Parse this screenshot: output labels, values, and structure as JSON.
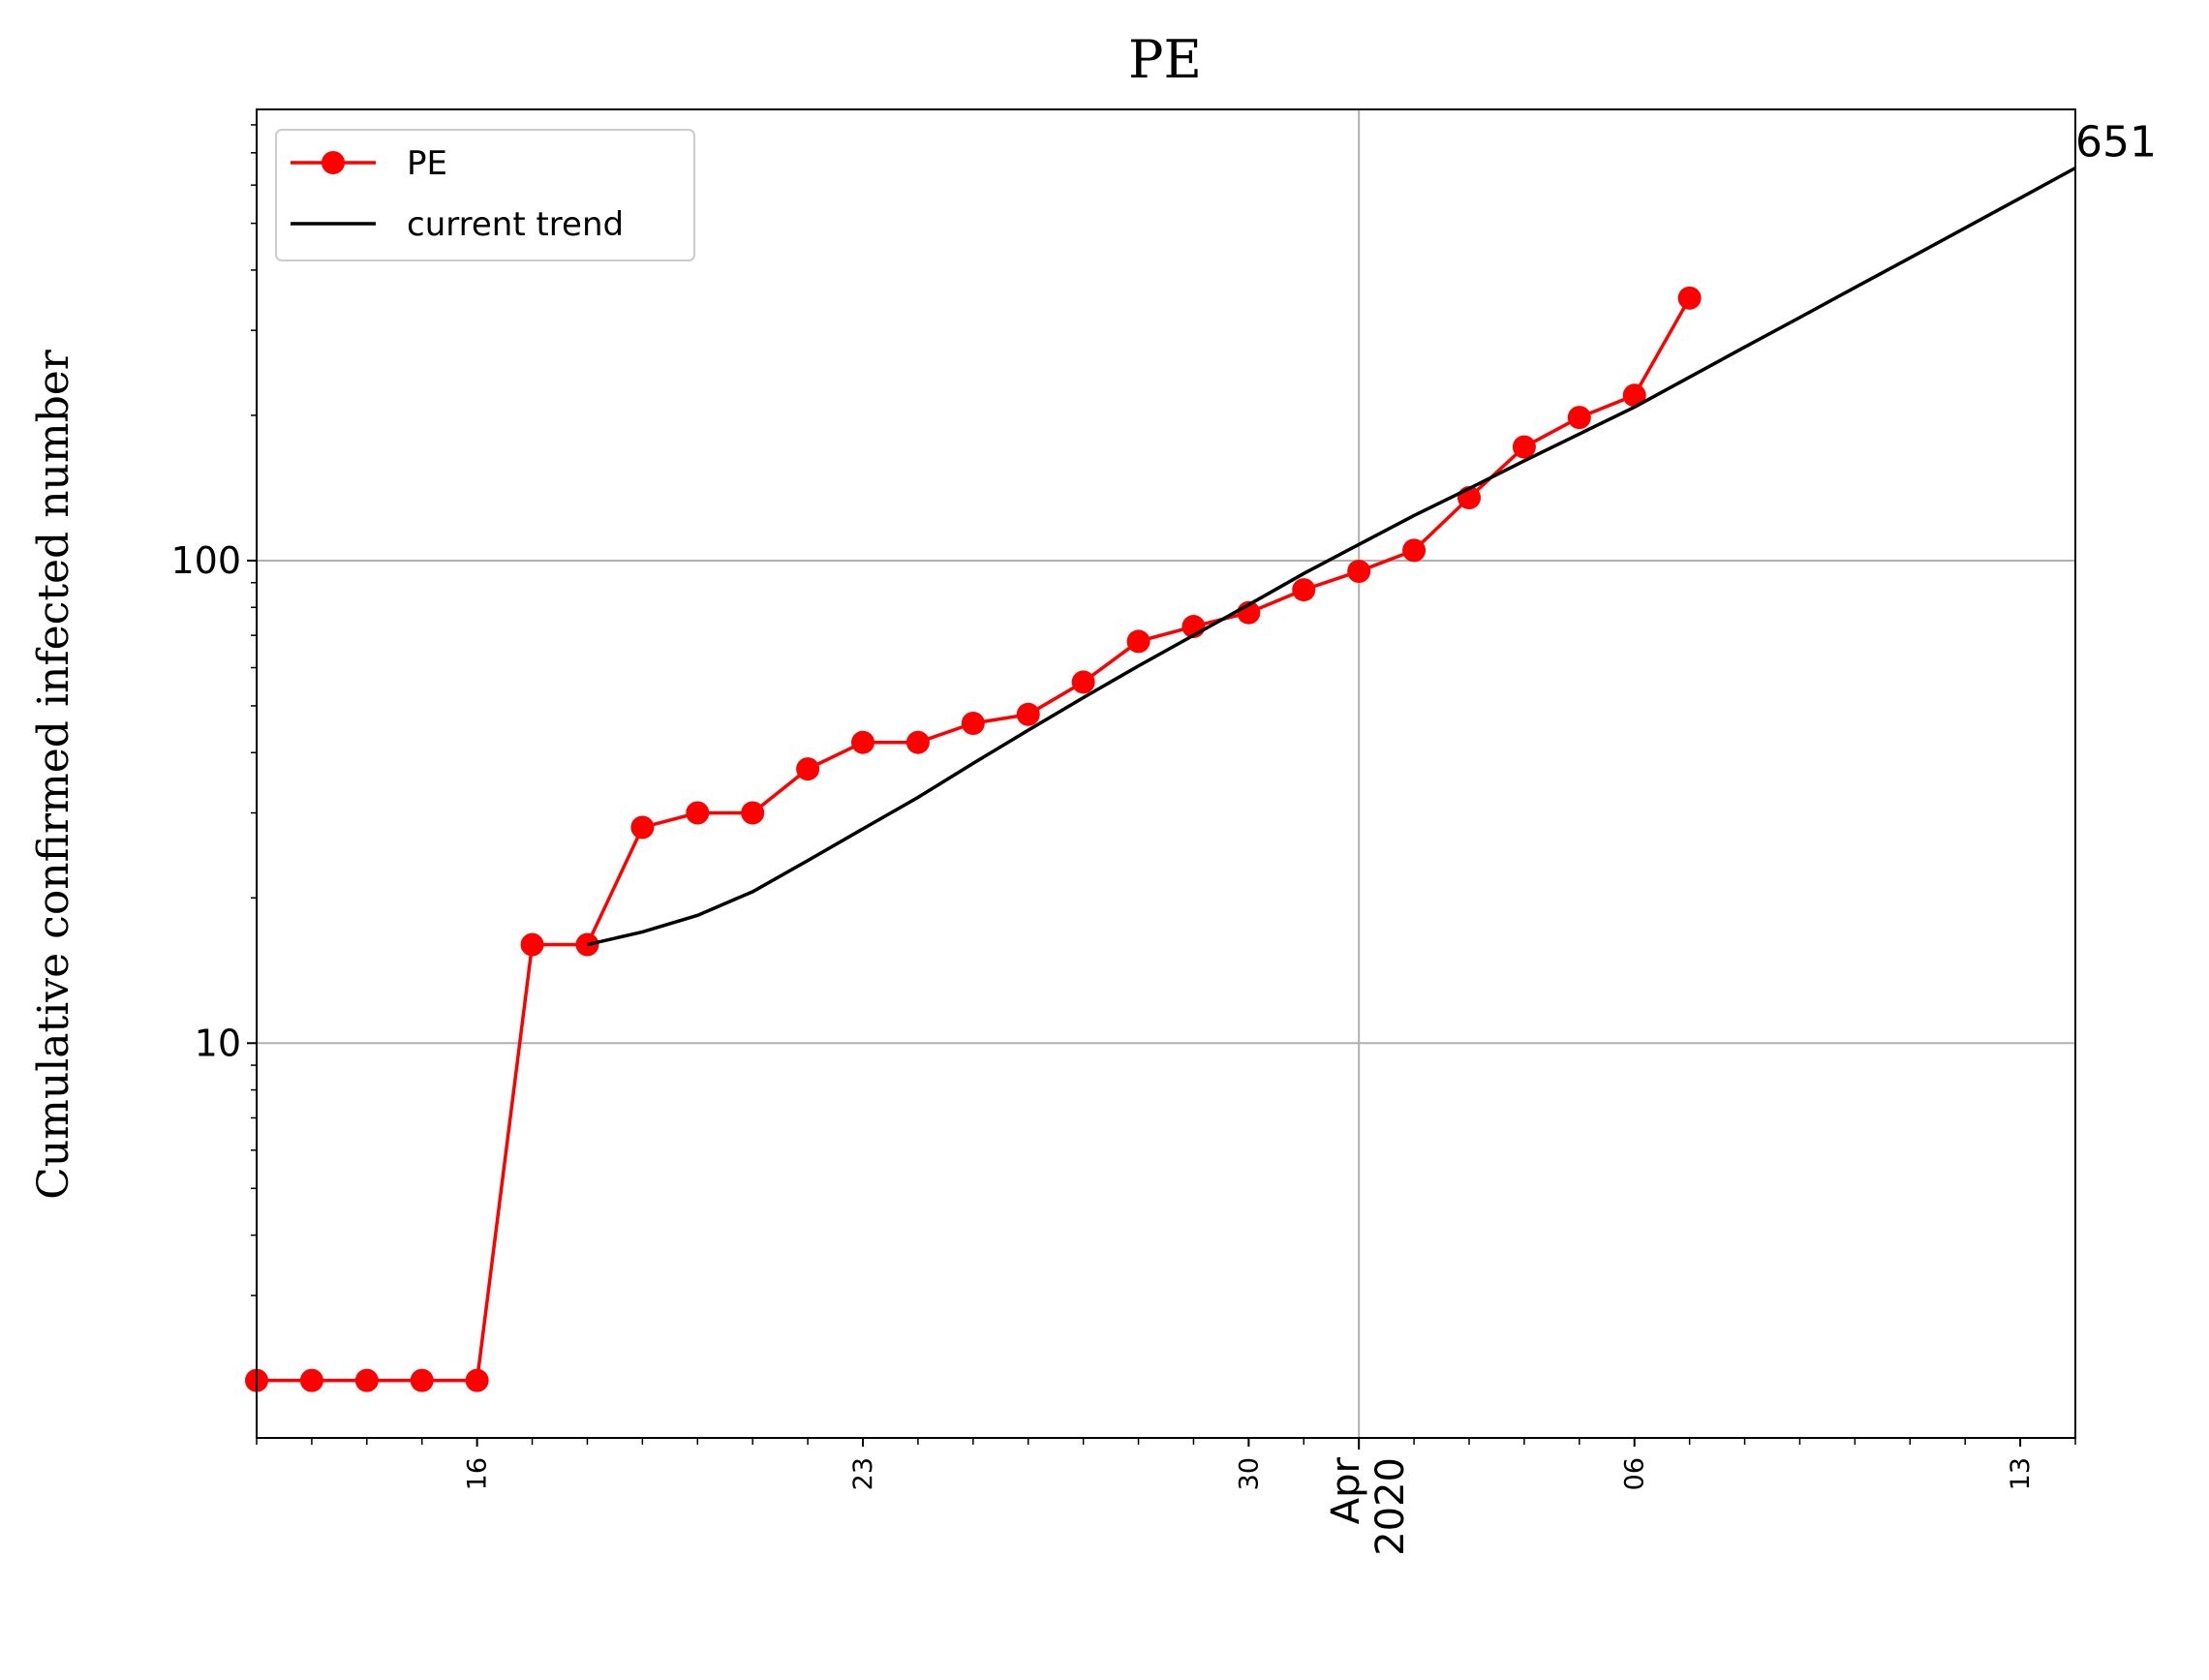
{
  "chart_data": {
    "type": "line",
    "title": "PE",
    "y_label": "Cumulative confirmed infected number",
    "log_y": true,
    "grid": true,
    "legend": "upper left",
    "xlim": [
      "2020-03-12",
      "2020-04-14"
    ],
    "ylim": [
      1.52,
      861
    ],
    "yticks": [
      10,
      100
    ],
    "xticks": [
      {
        "value": "2020-03-16",
        "label": "16"
      },
      {
        "value": "2020-03-23",
        "label": "23"
      },
      {
        "value": "2020-03-30",
        "label": "30"
      },
      {
        "value": "2020-04-01",
        "label": "Apr 2020"
      },
      {
        "value": "2020-04-06",
        "label": "06"
      },
      {
        "value": "2020-04-13",
        "label": "13"
      }
    ],
    "series": [
      {
        "name": "PE",
        "color": "#ff0000",
        "marker": true,
        "x": [
          "2020-03-12",
          "2020-03-13",
          "2020-03-14",
          "2020-03-15",
          "2020-03-16",
          "2020-03-17",
          "2020-03-18",
          "2020-03-19",
          "2020-03-20",
          "2020-03-21",
          "2020-03-22",
          "2020-03-23",
          "2020-03-24",
          "2020-03-25",
          "2020-03-26",
          "2020-03-27",
          "2020-03-28",
          "2020-03-29",
          "2020-03-30",
          "2020-03-31",
          "2020-04-01",
          "2020-04-02",
          "2020-04-03",
          "2020-04-04",
          "2020-04-05",
          "2020-04-06",
          "2020-04-07"
        ],
        "values": [
          2,
          2,
          2,
          2,
          2,
          16,
          16,
          28,
          30,
          30,
          37,
          42,
          42,
          46,
          48,
          56,
          68,
          73,
          78,
          87,
          95,
          105,
          135,
          172,
          198,
          220,
          350
        ]
      },
      {
        "name": "current trend",
        "color": "#000000",
        "marker": false,
        "x": [
          "2020-03-18",
          "2020-03-19",
          "2020-03-20",
          "2020-03-21",
          "2020-03-22",
          "2020-03-23",
          "2020-03-24",
          "2020-03-25",
          "2020-03-26",
          "2020-03-27",
          "2020-03-28",
          "2020-03-29",
          "2020-03-30",
          "2020-03-31",
          "2020-04-01",
          "2020-04-02",
          "2020-04-03",
          "2020-04-04",
          "2020-04-05",
          "2020-04-06",
          "2020-04-07",
          "2020-04-08",
          "2020-04-09",
          "2020-04-10",
          "2020-04-11",
          "2020-04-12",
          "2020-04-13",
          "2020-04-14"
        ],
        "values": [
          16,
          17,
          18.4,
          20.6,
          23.9,
          27.8,
          32.3,
          38,
          44.5,
          52,
          60.5,
          70,
          81,
          94,
          108,
          124,
          141,
          161,
          183,
          208,
          240,
          277,
          319,
          368,
          424,
          489,
          564,
          651
        ]
      }
    ]
  }
}
